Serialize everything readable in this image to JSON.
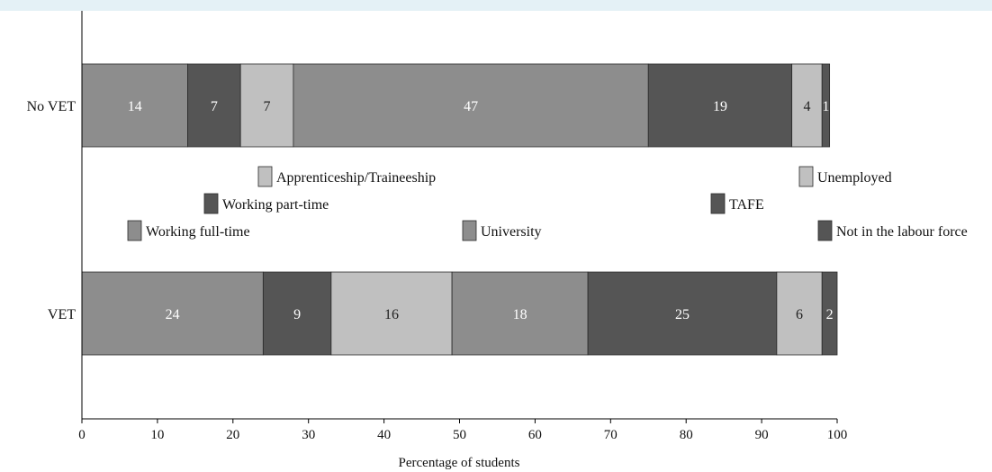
{
  "chart_data": {
    "type": "bar",
    "orientation": "horizontal",
    "stacked": true,
    "xlabel": "Percentage of students",
    "xlim": [
      0,
      100
    ],
    "xticks": [
      "0",
      "10",
      "20",
      "30",
      "40",
      "50",
      "60",
      "70",
      "80",
      "90",
      "100"
    ],
    "grid": false,
    "categories": [
      "No VET",
      "VET"
    ],
    "series": [
      {
        "name": "Working full-time",
        "values": [
          14,
          24
        ],
        "color": "#8d8d8d"
      },
      {
        "name": "Working part-time",
        "values": [
          7,
          9
        ],
        "color": "#555555"
      },
      {
        "name": "Apprenticeship/Traineeship",
        "values": [
          7,
          16
        ],
        "color": "#c0c0c0"
      },
      {
        "name": "University",
        "values": [
          47,
          18
        ],
        "color": "#8d8d8d"
      },
      {
        "name": "TAFE",
        "values": [
          19,
          25
        ],
        "color": "#555555"
      },
      {
        "name": "Unemployed",
        "values": [
          4,
          6
        ],
        "color": "#c0c0c0"
      },
      {
        "name": "Not in the labour force",
        "values": [
          1,
          2
        ],
        "color": "#555555"
      }
    ],
    "legend": {
      "placement": "between-bars",
      "entries": [
        {
          "label": "Apprenticeship/Traineeship",
          "color": "#c0c0c0"
        },
        {
          "label": "Working part-time",
          "color": "#555555"
        },
        {
          "label": "Working full-time",
          "color": "#8d8d8d"
        },
        {
          "label": "University",
          "color": "#8d8d8d"
        },
        {
          "label": "TAFE",
          "color": "#555555"
        },
        {
          "label": "Unemployed",
          "color": "#c0c0c0"
        },
        {
          "label": "Not in the labour force",
          "color": "#555555"
        }
      ]
    }
  }
}
